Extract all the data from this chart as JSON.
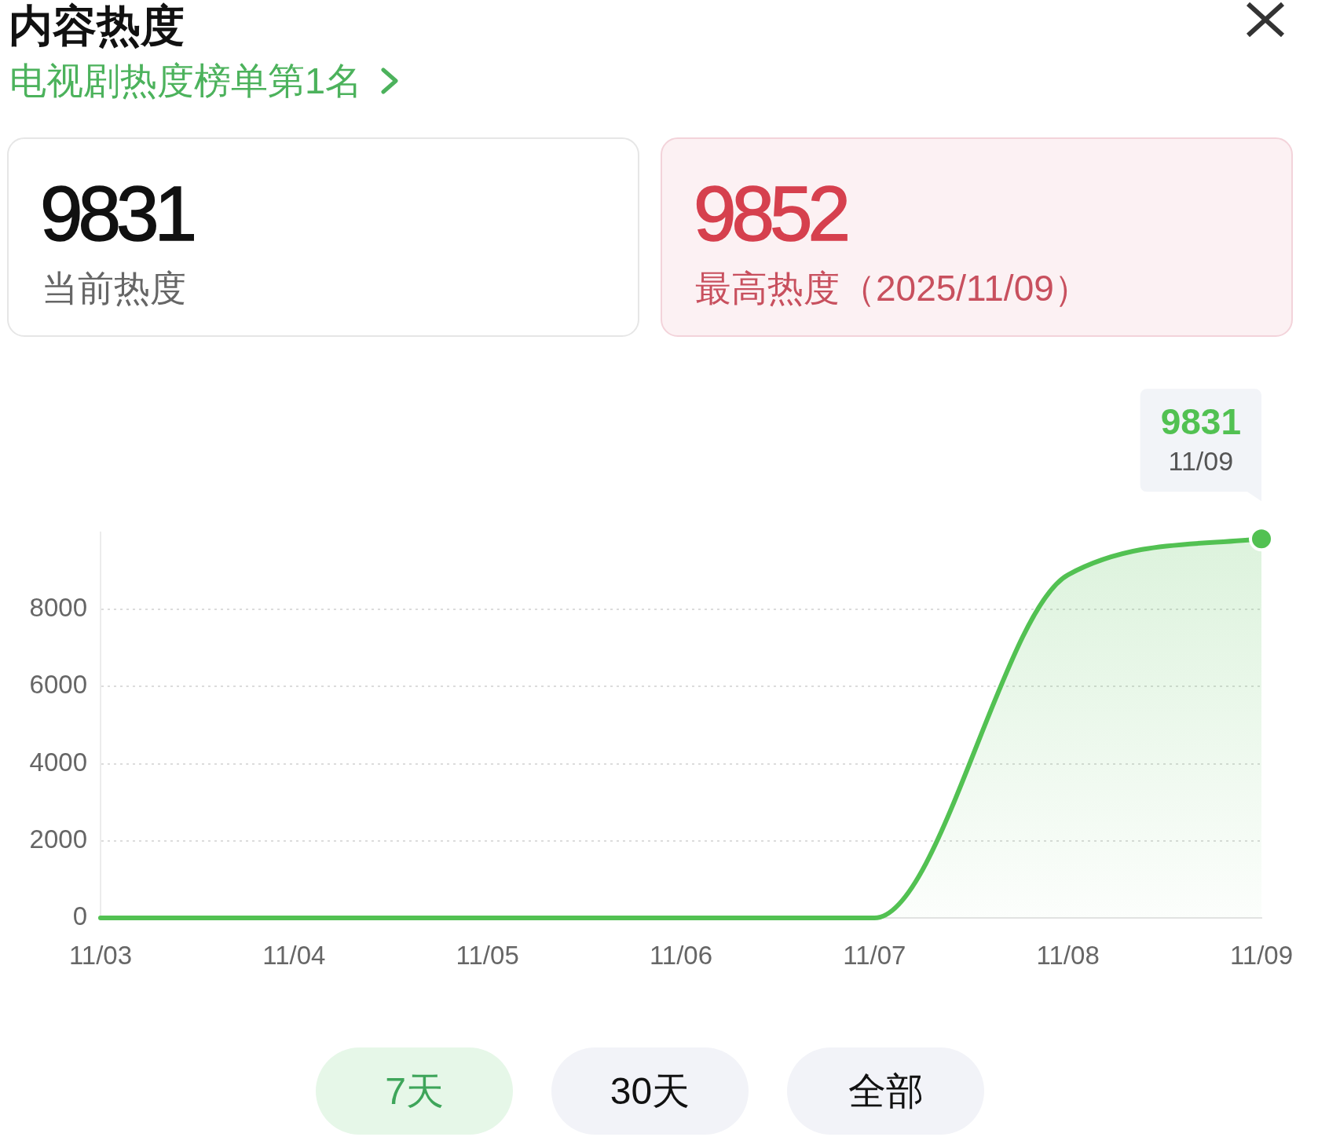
{
  "chart_data": {
    "type": "area",
    "title": "内容热度",
    "subtitle": "电视剧热度榜单第1名",
    "categories": [
      "11/03",
      "11/04",
      "11/05",
      "11/06",
      "11/07",
      "11/08",
      "11/09"
    ],
    "values": [
      0,
      0,
      0,
      0,
      0,
      8900,
      9831
    ],
    "color": "#52c152",
    "ylim": [
      0,
      10000
    ],
    "yticks": [
      0,
      2000,
      4000,
      6000,
      8000
    ],
    "grid": "y",
    "annotations": [
      "9831",
      "当前热度",
      "9852",
      "最高热度（2025/11/09）",
      "7天",
      "30天",
      "全部",
      {
        "text": "9831",
        "x": "11/09",
        "y": 9831
      },
      {
        "text": "11/09",
        "x": "11/09",
        "y": 9831
      }
    ]
  }
}
